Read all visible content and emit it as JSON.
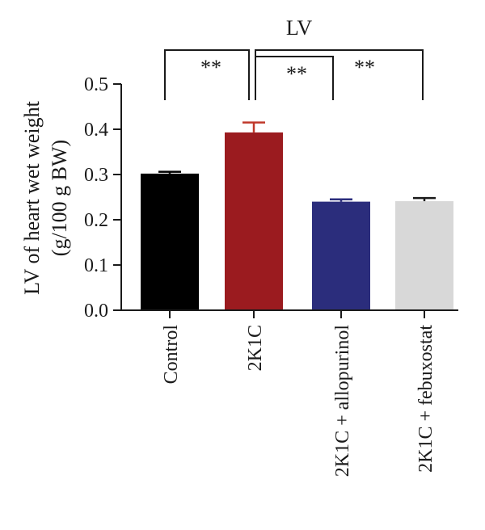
{
  "chart_data": {
    "type": "bar",
    "title": "LV",
    "ylabel_line1": "LV of heart wet weight",
    "ylabel_line2": "(g/100 g BW)",
    "xlabel": "",
    "ylim": [
      0,
      0.5
    ],
    "yticks": [
      "0.0",
      "0.1",
      "0.2",
      "0.3",
      "0.4",
      "0.5"
    ],
    "yticks_values": [
      0,
      0.1,
      0.2,
      0.3,
      0.4,
      0.5
    ],
    "categories": [
      "Control",
      "2K1C",
      "2K1C + allopurinol",
      "2K1C + febuxostat"
    ],
    "values": [
      0.302,
      0.393,
      0.24,
      0.241
    ],
    "errors": [
      0.004,
      0.022,
      0.005,
      0.007
    ],
    "colors": [
      "#000000",
      "#9b1b1f",
      "#2b2d7c",
      "#d8d8d8"
    ],
    "error_colors": [
      "#000000",
      "#c0392b",
      "#2b2d7c",
      "#1a1a1a"
    ],
    "significance": [
      {
        "from": 0,
        "to": 1,
        "label": "**"
      },
      {
        "from": 1,
        "to": 2,
        "label": "**"
      },
      {
        "from": 1,
        "to": 3,
        "label": "**"
      }
    ],
    "grid": false,
    "legend": "none"
  }
}
